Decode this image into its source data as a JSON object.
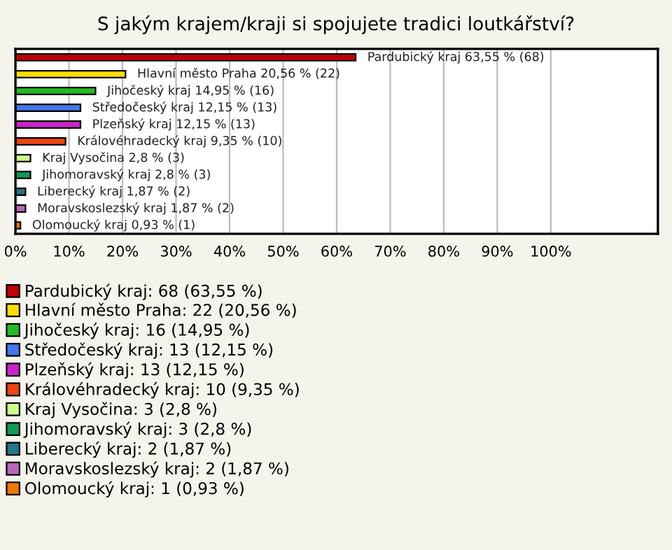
{
  "chart_data": {
    "type": "bar",
    "orientation": "horizontal",
    "title": "S jakým krajem/kraji si spojujete tradici loutkářství?",
    "categories": [
      null,
      null,
      null,
      null,
      null,
      null,
      null,
      null,
      null,
      null,
      null
    ],
    "xlim": [
      0,
      120
    ],
    "xticks": [
      {
        "value": 0,
        "label": "0%"
      },
      {
        "value": 10,
        "label": "10%"
      },
      {
        "value": 20,
        "label": "20%"
      },
      {
        "value": 30,
        "label": "30%"
      },
      {
        "value": 40,
        "label": "40%"
      },
      {
        "value": 50,
        "label": "50%"
      },
      {
        "value": 60,
        "label": "60%"
      },
      {
        "value": 70,
        "label": "70%"
      },
      {
        "value": 80,
        "label": "80%"
      },
      {
        "value": 90,
        "label": "90%"
      },
      {
        "value": 100,
        "label": "100%"
      }
    ],
    "grid": "x",
    "legend": "bottom",
    "series": [
      {
        "name": "Pardubický kraj: 68 (63,55 %)",
        "color": "#c00000",
        "values": [
          63.55,
          null,
          null,
          null,
          null,
          null,
          null,
          null,
          null,
          null,
          null
        ],
        "value_labels": [
          "Pardubický kraj 63,55 % (68)",
          null,
          null,
          null,
          null,
          null,
          null,
          null,
          null,
          null,
          null
        ]
      },
      {
        "name": "Hlavní město Praha: 22 (20,56 %)",
        "color": "#ffdd00",
        "values": [
          null,
          20.56,
          null,
          null,
          null,
          null,
          null,
          null,
          null,
          null,
          null
        ],
        "value_labels": [
          null,
          "Hlavní město Praha 20,56 % (22)",
          null,
          null,
          null,
          null,
          null,
          null,
          null,
          null,
          null
        ]
      },
      {
        "name": "Jihočeský kraj: 16 (14,95 %)",
        "color": "#22bb22",
        "values": [
          null,
          null,
          14.95,
          null,
          null,
          null,
          null,
          null,
          null,
          null,
          null
        ],
        "value_labels": [
          null,
          null,
          "Jihočeský kraj 14,95 % (16)",
          null,
          null,
          null,
          null,
          null,
          null,
          null,
          null
        ]
      },
      {
        "name": "Středočeský kraj: 13 (12,15 %)",
        "color": "#4477ee",
        "values": [
          null,
          null,
          null,
          12.15,
          null,
          null,
          null,
          null,
          null,
          null,
          null
        ],
        "value_labels": [
          null,
          null,
          null,
          "Středočeský kraj 12,15 % (13)",
          null,
          null,
          null,
          null,
          null,
          null,
          null
        ]
      },
      {
        "name": "Plzeňský kraj: 13 (12,15 %)",
        "color": "#cc22cc",
        "values": [
          null,
          null,
          null,
          null,
          12.15,
          null,
          null,
          null,
          null,
          null,
          null
        ],
        "value_labels": [
          null,
          null,
          null,
          null,
          "Plzeňský kraj 12,15 % (13)",
          null,
          null,
          null,
          null,
          null,
          null
        ]
      },
      {
        "name": "Královéhradecký kraj: 10 (9,35 %)",
        "color": "#ee4411",
        "values": [
          null,
          null,
          null,
          null,
          null,
          9.35,
          null,
          null,
          null,
          null,
          null
        ],
        "value_labels": [
          null,
          null,
          null,
          null,
          null,
          "Královéhradecký kraj 9,35 % (10)",
          null,
          null,
          null,
          null,
          null
        ]
      },
      {
        "name": "Kraj Vysočina: 3 (2,8 %)",
        "color": "#ccff88",
        "values": [
          null,
          null,
          null,
          null,
          null,
          null,
          2.8,
          null,
          null,
          null,
          null
        ],
        "value_labels": [
          null,
          null,
          null,
          null,
          null,
          null,
          "Kraj Vysočina 2,8 % (3)",
          null,
          null,
          null,
          null
        ]
      },
      {
        "name": "Jihomoravský kraj: 3 (2,8 %)",
        "color": "#119955",
        "values": [
          null,
          null,
          null,
          null,
          null,
          null,
          null,
          2.8,
          null,
          null,
          null
        ],
        "value_labels": [
          null,
          null,
          null,
          null,
          null,
          null,
          null,
          "Jihomoravský kraj 2,8 % (3)",
          null,
          null,
          null
        ]
      },
      {
        "name": "Liberecký kraj: 2 (1,87 %)",
        "color": "#227788",
        "values": [
          null,
          null,
          null,
          null,
          null,
          null,
          null,
          null,
          1.87,
          null,
          null
        ],
        "value_labels": [
          null,
          null,
          null,
          null,
          null,
          null,
          null,
          null,
          "Liberecký kraj 1,87 % (2)",
          null,
          null
        ]
      },
      {
        "name": "Moravskoslezský kraj: 2 (1,87 %)",
        "color": "#bb66bb",
        "values": [
          null,
          null,
          null,
          null,
          null,
          null,
          null,
          null,
          null,
          1.87,
          null
        ],
        "value_labels": [
          null,
          null,
          null,
          null,
          null,
          null,
          null,
          null,
          null,
          "Moravskoslezský kraj 1,87 % (2)",
          null
        ]
      },
      {
        "name": "Olomoucký kraj: 1 (0,93 %)",
        "color": "#ee7700",
        "values": [
          null,
          null,
          null,
          null,
          null,
          null,
          null,
          null,
          null,
          null,
          0.93
        ],
        "value_labels": [
          null,
          null,
          null,
          null,
          null,
          null,
          null,
          null,
          null,
          null,
          "Olomoucký kraj 0,93 % (1)"
        ]
      }
    ]
  }
}
